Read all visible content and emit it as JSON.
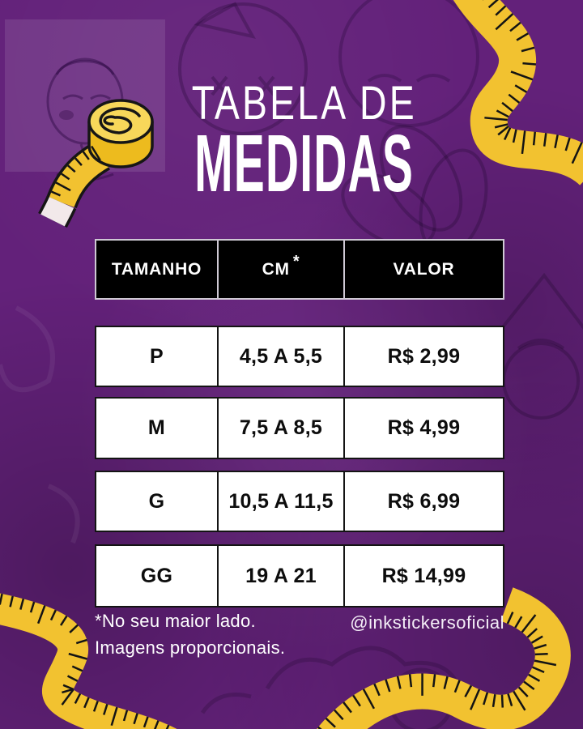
{
  "title": {
    "line1": "TABELA DE",
    "line2": "MEDIDAS"
  },
  "table": {
    "headers": [
      "TAMANHO",
      "CM",
      "VALOR"
    ],
    "cm_note_symbol": "*",
    "rows": [
      {
        "size": "P",
        "cm": "4,5 A 5,5",
        "price": "R$ 2,99"
      },
      {
        "size": "M",
        "cm": "7,5 A 8,5",
        "price": "R$ 4,99"
      },
      {
        "size": "G",
        "cm": "10,5 A 11,5",
        "price": "R$ 6,99"
      },
      {
        "size": "GG",
        "cm": "19 A 21",
        "price": "R$ 14,99"
      }
    ]
  },
  "footer": {
    "note_line1": "*No seu maior lado.",
    "note_line2": "Imagens proporcionais.",
    "handle": "@inkstickersoficial"
  },
  "decorations": {
    "top_left": "measuring-tape-roll",
    "top_right": "measuring-tape-curve",
    "bottom_left": "measuring-tape-wave",
    "bottom_right": "measuring-tape-wave",
    "background": "faded-sticker-collage"
  },
  "colors": {
    "background_purple": "#63217A",
    "tape_yellow": "#F2C230",
    "tape_yellow_light": "#F7D75A",
    "tape_end_white": "#F2E9EA",
    "header_bg": "#000000",
    "header_text": "#FFFFFF",
    "header_border": "#CFC9D4",
    "cell_bg": "#FFFFFF",
    "cell_text": "#0D0D0D",
    "cell_border": "#141414",
    "title_text": "#FFFFFF"
  }
}
